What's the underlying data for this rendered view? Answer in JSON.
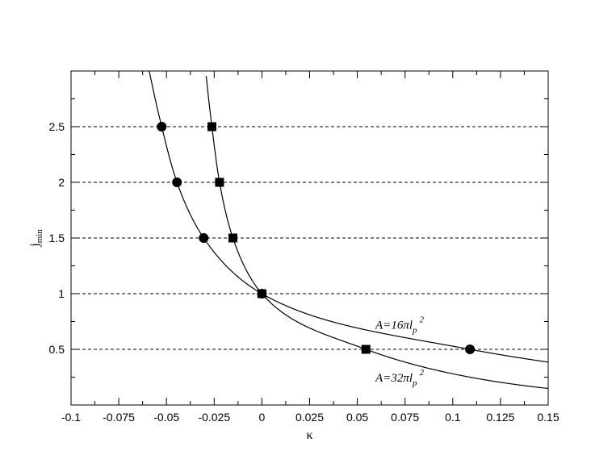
{
  "chart_data": {
    "type": "line",
    "title": "",
    "xlabel": "κ",
    "ylabel": "j",
    "ylabel_sub": "min",
    "xlim": [
      -0.1,
      0.15
    ],
    "ylim": [
      0,
      3
    ],
    "grid": "horizontal dashed lines at y = 0.5, 1, 1.5, 2, 2.5",
    "x_ticks": [
      {
        "value": -0.1,
        "label": "-0.1"
      },
      {
        "value": -0.075,
        "label": "-0.075"
      },
      {
        "value": -0.05,
        "label": "-0.05"
      },
      {
        "value": -0.025,
        "label": "-0.025"
      },
      {
        "value": 0,
        "label": "0"
      },
      {
        "value": 0.025,
        "label": "0.025"
      },
      {
        "value": 0.05,
        "label": "0.05"
      },
      {
        "value": 0.075,
        "label": "0.075"
      },
      {
        "value": 0.1,
        "label": "0.1"
      },
      {
        "value": 0.125,
        "label": "0.125"
      },
      {
        "value": 0.15,
        "label": "0.15"
      }
    ],
    "y_ticks": [
      {
        "value": 0.5,
        "label": "0.5"
      },
      {
        "value": 1,
        "label": "1"
      },
      {
        "value": 1.5,
        "label": "1.5"
      },
      {
        "value": 2,
        "label": "2"
      },
      {
        "value": 2.5,
        "label": "2.5"
      }
    ],
    "series": [
      {
        "name": "A=16πl_p^2",
        "label_main": "A=16πl",
        "label_sub": "p",
        "label_sup": "2",
        "marker": "circle",
        "color": "#000000",
        "points": [
          {
            "x": -0.0525,
            "y": 2.5
          },
          {
            "x": -0.0445,
            "y": 2.0
          },
          {
            "x": -0.0305,
            "y": 1.5
          },
          {
            "x": 0.0,
            "y": 1.0
          },
          {
            "x": 0.109,
            "y": 0.5
          }
        ]
      },
      {
        "name": "A=32πl_p^2",
        "label_main": "A=32πl",
        "label_sub": "p",
        "label_sup": "2",
        "marker": "square",
        "color": "#000000",
        "points": [
          {
            "x": -0.0262,
            "y": 2.5
          },
          {
            "x": -0.0222,
            "y": 2.0
          },
          {
            "x": -0.0152,
            "y": 1.5
          },
          {
            "x": 0.0,
            "y": 1.0
          },
          {
            "x": 0.0545,
            "y": 0.5
          }
        ]
      }
    ]
  }
}
